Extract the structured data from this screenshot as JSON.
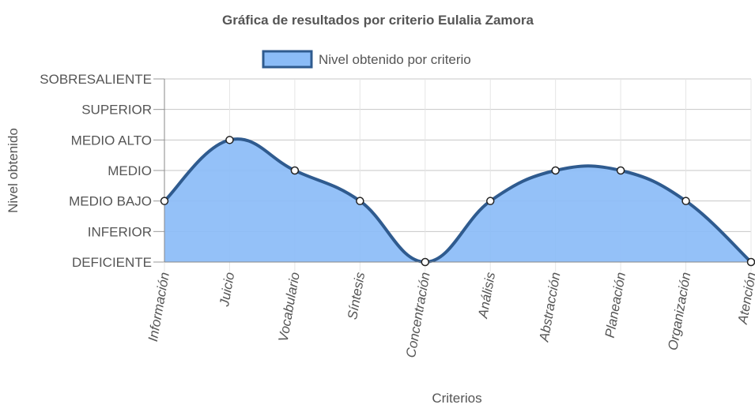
{
  "chart_data": {
    "type": "area",
    "title": "Gráfica de resultados por criterio Eulalia Zamora",
    "xlabel": "Criterios",
    "ylabel": "Nivel obtenido",
    "categories": [
      "Información",
      "Juicio",
      "Vocabulario",
      "Síntesis",
      "Concentración",
      "Análisis",
      "Abstracción",
      "Planeación",
      "Organización",
      "Atención"
    ],
    "y_levels": [
      "DEFICIENTE",
      "INFERIOR",
      "MEDIO BAJO",
      "MEDIO",
      "MEDIO ALTO",
      "SUPERIOR",
      "SOBRESALIENTE"
    ],
    "ylim": [
      0,
      6
    ],
    "series": [
      {
        "name": "Nivel obtenido por criterio",
        "values": [
          2,
          4,
          3,
          2,
          0,
          2,
          3,
          3,
          2,
          0
        ]
      }
    ],
    "grid": true,
    "legend": "top-center",
    "colors": {
      "fill": "#8bbcf7",
      "line": "#2f5b8f",
      "grid": "#e5e5e5",
      "axis": "#888888",
      "text": "#555555"
    }
  }
}
